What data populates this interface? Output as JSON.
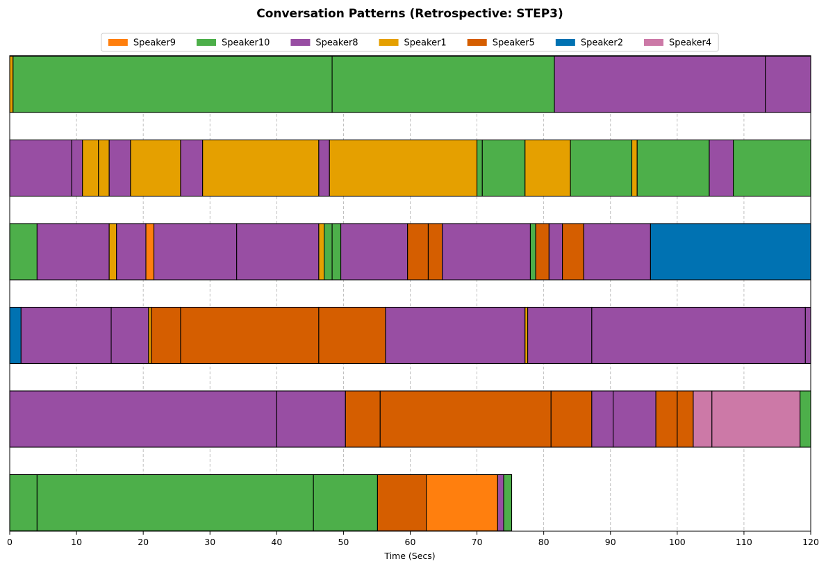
{
  "chart_data": {
    "type": "timeline",
    "title": "Conversation Patterns (Retrospective: STEP3)",
    "xlabel": "Time (Secs)",
    "xlim": [
      0,
      120
    ],
    "xticks": [
      0,
      10,
      20,
      30,
      40,
      50,
      60,
      70,
      80,
      90,
      100,
      110,
      120
    ],
    "grid": "x-dashed",
    "legend_position": "top-center",
    "legend": [
      {
        "name": "Speaker9",
        "color": "#ff7f0e"
      },
      {
        "name": "Speaker10",
        "color": "#4daf4a"
      },
      {
        "name": "Speaker8",
        "color": "#984ea3"
      },
      {
        "name": "Speaker1",
        "color": "#e5a000"
      },
      {
        "name": "Speaker5",
        "color": "#d55e00"
      },
      {
        "name": "Speaker2",
        "color": "#0072b2"
      },
      {
        "name": "Speaker4",
        "color": "#cc79a7"
      }
    ],
    "rows": [
      [
        {
          "speaker": "Speaker1",
          "start": 0,
          "end": 0.5
        },
        {
          "speaker": "Speaker10",
          "start": 0.5,
          "end": 48.3
        },
        {
          "speaker": "Speaker10",
          "start": 48.3,
          "end": 81.6
        },
        {
          "speaker": "Speaker8",
          "start": 81.6,
          "end": 113.2
        },
        {
          "speaker": "Speaker8",
          "start": 113.2,
          "end": 120
        }
      ],
      [
        {
          "speaker": "Speaker8",
          "start": 0,
          "end": 9.3
        },
        {
          "speaker": "Speaker8",
          "start": 9.3,
          "end": 10.9
        },
        {
          "speaker": "Speaker1",
          "start": 10.9,
          "end": 13.3
        },
        {
          "speaker": "Speaker1",
          "start": 13.3,
          "end": 14.9
        },
        {
          "speaker": "Speaker8",
          "start": 14.9,
          "end": 18.1
        },
        {
          "speaker": "Speaker1",
          "start": 18.1,
          "end": 25.6
        },
        {
          "speaker": "Speaker8",
          "start": 25.6,
          "end": 28.9
        },
        {
          "speaker": "Speaker1",
          "start": 28.9,
          "end": 46.3
        },
        {
          "speaker": "Speaker8",
          "start": 46.3,
          "end": 47.9
        },
        {
          "speaker": "Speaker1",
          "start": 47.9,
          "end": 70.0
        },
        {
          "speaker": "Speaker10",
          "start": 70.0,
          "end": 70.8
        },
        {
          "speaker": "Speaker10",
          "start": 70.8,
          "end": 77.2
        },
        {
          "speaker": "Speaker1",
          "start": 77.2,
          "end": 84.0
        },
        {
          "speaker": "Speaker10",
          "start": 84.0,
          "end": 93.2
        },
        {
          "speaker": "Speaker1",
          "start": 93.2,
          "end": 94.0
        },
        {
          "speaker": "Speaker10",
          "start": 94.0,
          "end": 104.8
        },
        {
          "speaker": "Speaker8",
          "start": 104.8,
          "end": 108.4
        },
        {
          "speaker": "Speaker10",
          "start": 108.4,
          "end": 120
        }
      ],
      [
        {
          "speaker": "Speaker10",
          "start": 0,
          "end": 4.1
        },
        {
          "speaker": "Speaker8",
          "start": 4.1,
          "end": 14.9
        },
        {
          "speaker": "Speaker1",
          "start": 14.9,
          "end": 16.0
        },
        {
          "speaker": "Speaker8",
          "start": 16.0,
          "end": 20.4
        },
        {
          "speaker": "Speaker9",
          "start": 20.4,
          "end": 21.6
        },
        {
          "speaker": "Speaker8",
          "start": 21.6,
          "end": 34.0
        },
        {
          "speaker": "Speaker8",
          "start": 34.0,
          "end": 46.3
        },
        {
          "speaker": "Speaker1",
          "start": 46.3,
          "end": 47.1
        },
        {
          "speaker": "Speaker10",
          "start": 47.1,
          "end": 48.3
        },
        {
          "speaker": "Speaker10",
          "start": 48.3,
          "end": 49.6
        },
        {
          "speaker": "Speaker8",
          "start": 49.6,
          "end": 59.6
        },
        {
          "speaker": "Speaker5",
          "start": 59.6,
          "end": 62.7
        },
        {
          "speaker": "Speaker5",
          "start": 62.7,
          "end": 64.8
        },
        {
          "speaker": "Speaker8",
          "start": 64.8,
          "end": 78.0
        },
        {
          "speaker": "Speaker10",
          "start": 78.0,
          "end": 78.8
        },
        {
          "speaker": "Speaker5",
          "start": 78.8,
          "end": 80.8
        },
        {
          "speaker": "Speaker8",
          "start": 80.8,
          "end": 82.8
        },
        {
          "speaker": "Speaker5",
          "start": 82.8,
          "end": 86.0
        },
        {
          "speaker": "Speaker8",
          "start": 86.0,
          "end": 96.0
        },
        {
          "speaker": "Speaker2",
          "start": 96.0,
          "end": 120
        }
      ],
      [
        {
          "speaker": "Speaker2",
          "start": 0,
          "end": 1.7
        },
        {
          "speaker": "Speaker8",
          "start": 1.7,
          "end": 15.2
        },
        {
          "speaker": "Speaker8",
          "start": 15.2,
          "end": 20.8
        },
        {
          "speaker": "Speaker1",
          "start": 20.8,
          "end": 21.2
        },
        {
          "speaker": "Speaker5",
          "start": 21.2,
          "end": 25.6
        },
        {
          "speaker": "Speaker5",
          "start": 25.6,
          "end": 46.3
        },
        {
          "speaker": "Speaker5",
          "start": 46.3,
          "end": 56.3
        },
        {
          "speaker": "Speaker8",
          "start": 56.3,
          "end": 77.2
        },
        {
          "speaker": "Speaker1",
          "start": 77.2,
          "end": 77.6
        },
        {
          "speaker": "Speaker8",
          "start": 77.6,
          "end": 87.2
        },
        {
          "speaker": "Speaker8",
          "start": 87.2,
          "end": 119.2
        },
        {
          "speaker": "Speaker8",
          "start": 119.2,
          "end": 120
        }
      ],
      [
        {
          "speaker": "Speaker8",
          "start": 0,
          "end": 40.0
        },
        {
          "speaker": "Speaker8",
          "start": 40.0,
          "end": 50.3
        },
        {
          "speaker": "Speaker5",
          "start": 50.3,
          "end": 55.5
        },
        {
          "speaker": "Speaker5",
          "start": 55.5,
          "end": 81.1
        },
        {
          "speaker": "Speaker5",
          "start": 81.1,
          "end": 87.2
        },
        {
          "speaker": "Speaker8",
          "start": 87.2,
          "end": 90.4
        },
        {
          "speaker": "Speaker8",
          "start": 90.4,
          "end": 96.8
        },
        {
          "speaker": "Speaker5",
          "start": 96.8,
          "end": 100.0
        },
        {
          "speaker": "Speaker5",
          "start": 100.0,
          "end": 102.4
        },
        {
          "speaker": "Speaker4",
          "start": 102.4,
          "end": 105.2
        },
        {
          "speaker": "Speaker4",
          "start": 105.2,
          "end": 118.4
        },
        {
          "speaker": "Speaker10",
          "start": 118.4,
          "end": 120
        }
      ],
      [
        {
          "speaker": "Speaker10",
          "start": 0,
          "end": 4.1
        },
        {
          "speaker": "Speaker10",
          "start": 4.1,
          "end": 45.5
        },
        {
          "speaker": "Speaker10",
          "start": 45.5,
          "end": 55.1
        },
        {
          "speaker": "Speaker5",
          "start": 55.1,
          "end": 62.4
        },
        {
          "speaker": "Speaker9",
          "start": 62.4,
          "end": 73.1
        },
        {
          "speaker": "Speaker8",
          "start": 73.1,
          "end": 74.0
        },
        {
          "speaker": "Speaker10",
          "start": 74.0,
          "end": 75.2
        }
      ]
    ]
  }
}
